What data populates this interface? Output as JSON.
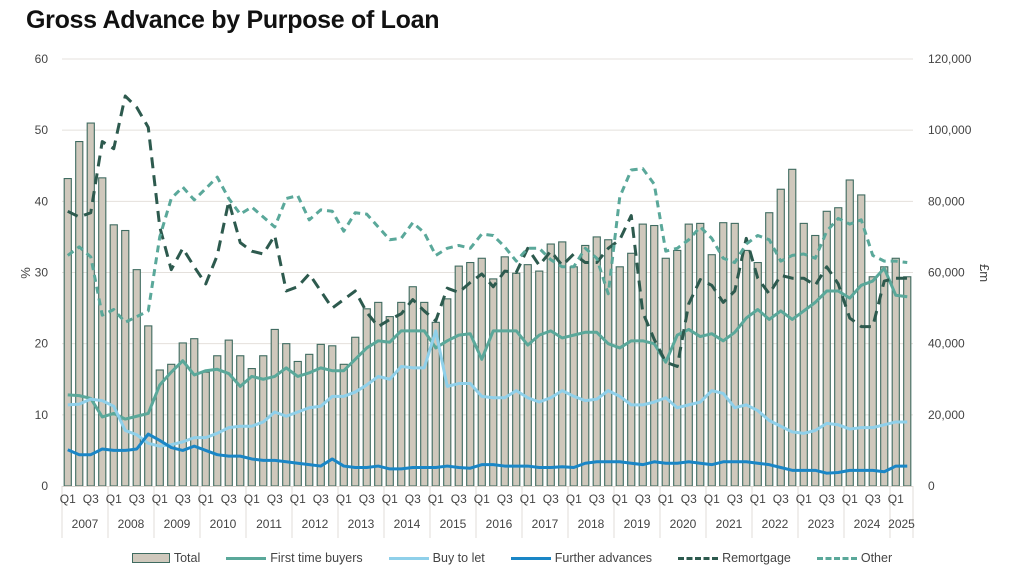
{
  "chart_data": {
    "type": "bar+line",
    "title": "Gross Advance by Purpose of Loan",
    "ylabel_left": "%",
    "ylabel_right": "£m",
    "ylim_left": [
      0,
      60
    ],
    "ylim_right": [
      0,
      120000
    ],
    "yticks_left": [
      "0",
      "10",
      "20",
      "30",
      "40",
      "50",
      "60"
    ],
    "yticks_right": [
      "0",
      "20,000",
      "40,000",
      "60,000",
      "80,000",
      "100,000",
      "120,000"
    ],
    "grid": true,
    "legend_position": "bottom",
    "years": [
      "2007",
      "2008",
      "2009",
      "2010",
      "2011",
      "2012",
      "2013",
      "2014",
      "2015",
      "2016",
      "2017",
      "2018",
      "2019",
      "2020",
      "2021",
      "2022",
      "2023",
      "2024",
      "2025"
    ],
    "quarter_labels": [
      "Q1",
      "Q3"
    ],
    "n_quarters": 74,
    "series": [
      {
        "name": "Total",
        "type": "bar",
        "axis": "right",
        "color": "#cfc8bc",
        "edge": "#3f6b60",
        "values": [
          86400,
          96800,
          102000,
          86600,
          73400,
          71800,
          60800,
          45000,
          32600,
          34200,
          40200,
          41400,
          32000,
          36600,
          41000,
          36600,
          33000,
          36600,
          44000,
          40000,
          35000,
          37000,
          39800,
          39400,
          34200,
          41800,
          49800,
          51600,
          47600,
          51600,
          56000,
          51600,
          46000,
          52600,
          61800,
          62800,
          64000,
          58200,
          64400,
          59800,
          62200,
          60400,
          68000,
          68600,
          61600,
          67600,
          70000,
          69200,
          61600,
          65400,
          73600,
          73200,
          64000,
          66200,
          73600,
          73800,
          65000,
          74000,
          73800,
          66200,
          62800,
          76800,
          83400,
          89000,
          73800,
          70400,
          77200,
          78200,
          86000,
          81800,
          58800,
          61600,
          64000,
          58800
        ]
      },
      {
        "name": "First time buyers",
        "type": "line",
        "axis": "left",
        "color": "#5aa89a",
        "dash": "solid",
        "values": [
          12.8,
          12.7,
          12.3,
          9.7,
          10.2,
          9.4,
          9.8,
          10.2,
          14.2,
          16.0,
          17.6,
          15.6,
          16.2,
          16.4,
          15.8,
          14.0,
          15.4,
          15.0,
          15.4,
          16.6,
          15.4,
          15.9,
          16.6,
          16.2,
          16.2,
          17.8,
          19.4,
          20.4,
          20.2,
          21.8,
          21.8,
          21.8,
          19.4,
          20.4,
          21.2,
          21.4,
          17.8,
          21.8,
          21.8,
          21.8,
          19.8,
          21.2,
          21.8,
          20.8,
          21.2,
          21.6,
          21.6,
          20.0,
          19.4,
          20.4,
          20.4,
          20.0,
          17.4,
          21.2,
          22.0,
          21.0,
          21.4,
          20.4,
          21.6,
          23.6,
          24.8,
          23.4,
          24.6,
          23.4,
          24.6,
          25.8,
          27.4,
          27.4,
          26.4,
          28.2,
          28.8,
          30.6,
          26.8,
          26.6
        ]
      },
      {
        "name": "Buy to let",
        "type": "line",
        "axis": "left",
        "color": "#8fd0ea",
        "dash": "solid",
        "values": [
          11.4,
          11.5,
          12.2,
          12.0,
          11.2,
          7.8,
          7.2,
          6.0,
          5.6,
          5.8,
          6.2,
          6.8,
          6.8,
          7.4,
          8.2,
          8.4,
          8.4,
          9.0,
          10.4,
          9.8,
          10.4,
          11.0,
          11.2,
          12.6,
          12.6,
          13.2,
          14.2,
          15.4,
          15.0,
          16.8,
          16.6,
          16.6,
          21.8,
          14.0,
          14.4,
          14.4,
          12.6,
          12.4,
          12.4,
          13.4,
          12.4,
          11.8,
          12.4,
          13.4,
          12.6,
          12.0,
          12.2,
          13.4,
          12.6,
          11.4,
          11.4,
          11.8,
          12.4,
          11.0,
          11.4,
          11.8,
          13.4,
          13.0,
          11.0,
          11.4,
          10.6,
          9.2,
          8.4,
          7.6,
          7.4,
          7.8,
          8.8,
          8.6,
          8.0,
          8.2,
          8.2,
          8.6,
          9.0,
          9.0
        ]
      },
      {
        "name": "Further advances",
        "type": "line",
        "axis": "left",
        "color": "#1a86c6",
        "dash": "solid",
        "values": [
          5.1,
          4.4,
          4.4,
          5.2,
          5.0,
          5.0,
          5.2,
          7.3,
          6.4,
          5.4,
          5.0,
          5.6,
          5.0,
          4.4,
          4.2,
          4.2,
          3.8,
          3.6,
          3.6,
          3.4,
          3.2,
          3.0,
          2.8,
          3.8,
          2.8,
          2.6,
          2.6,
          2.8,
          2.4,
          2.4,
          2.6,
          2.6,
          2.6,
          2.8,
          2.6,
          2.5,
          3.0,
          3.0,
          2.8,
          2.8,
          2.8,
          2.6,
          2.6,
          2.7,
          2.6,
          3.2,
          3.4,
          3.4,
          3.4,
          3.2,
          3.0,
          3.4,
          3.2,
          3.2,
          3.4,
          3.2,
          3.0,
          3.4,
          3.4,
          3.4,
          3.2,
          3.0,
          2.6,
          2.2,
          2.2,
          2.2,
          1.8,
          1.9,
          2.2,
          2.2,
          2.2,
          2.0,
          2.8,
          2.8
        ]
      },
      {
        "name": "Remortgage",
        "type": "line",
        "axis": "left",
        "color": "#2d5a4e",
        "dash": "dashed",
        "values": [
          38.6,
          37.8,
          38.4,
          48.4,
          47.4,
          54.8,
          53.2,
          50.4,
          36.4,
          30.4,
          33.4,
          30.8,
          28.4,
          32.4,
          40.0,
          34.2,
          33.0,
          32.6,
          35.2,
          27.4,
          28.0,
          29.8,
          27.4,
          25.0,
          26.2,
          27.4,
          24.4,
          22.4,
          23.4,
          24.2,
          26.2,
          24.6,
          23.2,
          27.8,
          27.2,
          28.6,
          29.8,
          28.0,
          30.2,
          30.0,
          33.4,
          31.0,
          33.0,
          31.0,
          32.6,
          31.4,
          31.4,
          33.4,
          34.6,
          38.0,
          24.4,
          20.6,
          17.4,
          16.8,
          25.6,
          29.0,
          28.2,
          25.8,
          27.4,
          34.8,
          29.2,
          27.0,
          29.6,
          29.2,
          29.2,
          28.2,
          30.8,
          28.4,
          23.6,
          22.4,
          22.4,
          28.8,
          29.2,
          29.2
        ]
      },
      {
        "name": "Other",
        "type": "line",
        "axis": "left",
        "color": "#5aa89a",
        "dash": "dashed",
        "values": [
          32.4,
          33.6,
          32.2,
          24.0,
          24.8,
          23.0,
          23.8,
          24.6,
          35.0,
          40.4,
          42.0,
          40.2,
          41.8,
          43.4,
          40.4,
          38.2,
          39.2,
          37.8,
          36.4,
          40.4,
          40.8,
          37.4,
          38.8,
          38.6,
          35.8,
          38.4,
          38.2,
          36.4,
          34.6,
          34.8,
          37.0,
          35.6,
          32.4,
          33.4,
          33.8,
          33.4,
          35.4,
          35.2,
          33.6,
          31.6,
          33.4,
          33.4,
          31.8,
          30.8,
          30.8,
          33.4,
          32.0,
          27.0,
          40.6,
          44.4,
          44.6,
          42.4,
          33.0,
          33.4,
          34.6,
          36.4,
          34.8,
          32.0,
          31.4,
          34.0,
          35.2,
          34.6,
          31.6,
          32.4,
          32.6,
          32.0,
          35.8,
          37.6,
          36.8,
          37.4,
          32.4,
          31.6,
          31.6,
          31.4
        ]
      }
    ]
  }
}
